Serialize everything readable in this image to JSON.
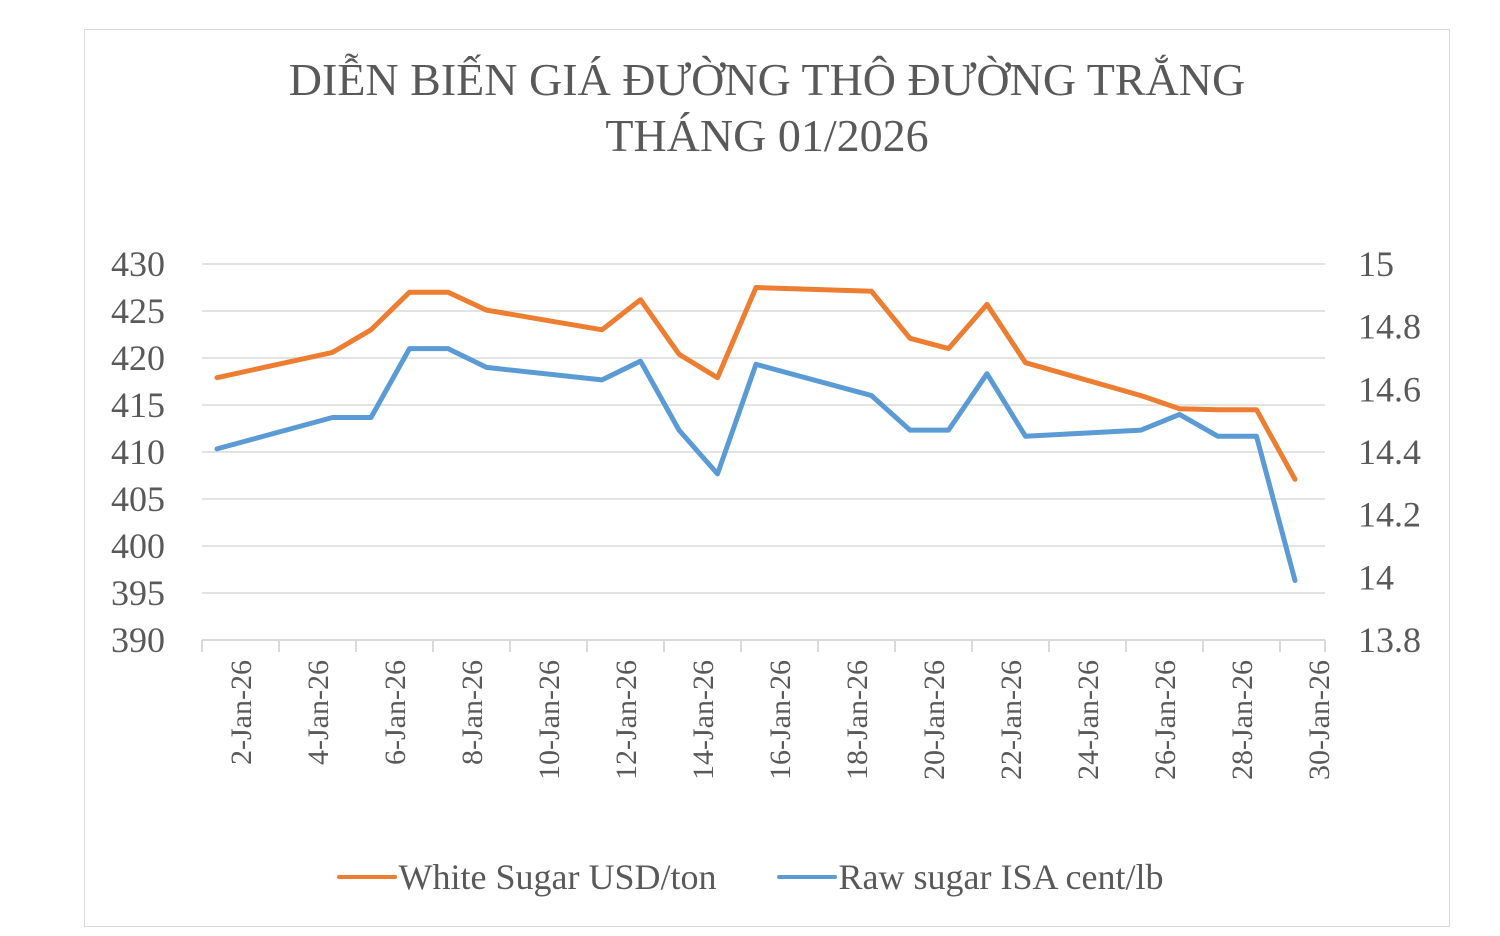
{
  "chart_data": {
    "type": "line",
    "title": "DIỄN BIẾN GIÁ ĐƯỜNG THÔ ĐƯỜNG TRẮNG THÁNG 01/2026",
    "title_lines": [
      "DIỄN BIẾN GIÁ ĐƯỜNG THÔ ĐƯỜNG TRẮNG",
      "THÁNG 01/2026"
    ],
    "xlabel": "",
    "ylabel": "",
    "x_tick_labels": [
      "2-Jan-26",
      "4-Jan-26",
      "6-Jan-26",
      "8-Jan-26",
      "10-Jan-26",
      "12-Jan-26",
      "14-Jan-26",
      "16-Jan-26",
      "18-Jan-26",
      "20-Jan-26",
      "22-Jan-26",
      "24-Jan-26",
      "26-Jan-26",
      "28-Jan-26",
      "30-Jan-26"
    ],
    "x_days": [
      2,
      5,
      6,
      7,
      8,
      9,
      12,
      13,
      14,
      15,
      16,
      19,
      20,
      21,
      22,
      23,
      26,
      27,
      28,
      29,
      30
    ],
    "categories": [
      "2-Jan-26",
      "5-Jan-26",
      "6-Jan-26",
      "7-Jan-26",
      "8-Jan-26",
      "9-Jan-26",
      "12-Jan-26",
      "13-Jan-26",
      "14-Jan-26",
      "15-Jan-26",
      "16-Jan-26",
      "19-Jan-26",
      "20-Jan-26",
      "21-Jan-26",
      "22-Jan-26",
      "23-Jan-26",
      "26-Jan-26",
      "27-Jan-26",
      "28-Jan-26",
      "29-Jan-26",
      "30-Jan-26"
    ],
    "series": [
      {
        "name": "White Sugar USD/ton",
        "axis": "left",
        "color": "#ED7D31",
        "values": [
          417.9,
          420.6,
          423.0,
          427.0,
          427.0,
          425.1,
          423.0,
          426.2,
          420.4,
          417.9,
          427.5,
          427.1,
          422.1,
          421.0,
          425.7,
          419.5,
          416.0,
          414.6,
          414.5,
          414.5,
          407.1
        ]
      },
      {
        "name": "Raw sugar ISA cent/lb",
        "axis": "right",
        "color": "#5B9BD5",
        "values": [
          14.41,
          14.51,
          14.51,
          14.73,
          14.73,
          14.67,
          14.63,
          14.69,
          14.47,
          14.33,
          14.68,
          14.58,
          14.47,
          14.47,
          14.65,
          14.45,
          14.47,
          14.52,
          14.45,
          14.45,
          13.99
        ]
      }
    ],
    "y_left": {
      "ylim": [
        390,
        430
      ],
      "ticks": [
        430,
        425,
        420,
        415,
        410,
        405,
        400,
        395,
        390
      ]
    },
    "y_right": {
      "ylim": [
        13.8,
        15.0
      ],
      "ticks": [
        "15",
        "14.8",
        "14.6",
        "14.4",
        "14.2",
        "14",
        "13.8"
      ]
    },
    "grid": true,
    "legend_position": "bottom"
  },
  "legend": {
    "items": [
      {
        "label": "White Sugar USD/ton",
        "color": "#ED7D31"
      },
      {
        "label": "Raw sugar ISA cent/lb",
        "color": "#5B9BD5"
      }
    ]
  }
}
